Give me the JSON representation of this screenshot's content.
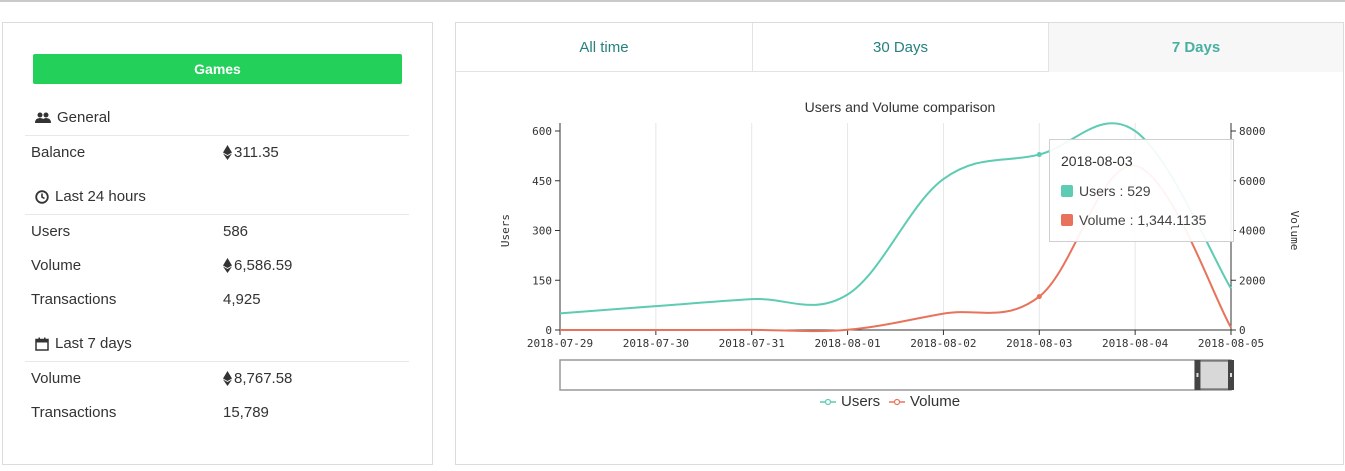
{
  "left": {
    "games_label": "Games",
    "general": {
      "heading": "General",
      "balance_label": "Balance",
      "balance_value": "311.35"
    },
    "last24": {
      "heading": "Last 24 hours",
      "users_label": "Users",
      "users_value": "586",
      "volume_label": "Volume",
      "volume_value": "6,586.59",
      "transactions_label": "Transactions",
      "transactions_value": "4,925"
    },
    "last7": {
      "heading": "Last 7 days",
      "volume_label": "Volume",
      "volume_value": "8,767.58",
      "transactions_label": "Transactions",
      "transactions_value": "15,789"
    }
  },
  "tabs": [
    {
      "label": "All time",
      "active": false
    },
    {
      "label": "30 Days",
      "active": false
    },
    {
      "label": "7 Days",
      "active": true
    }
  ],
  "tooltip": {
    "date": "2018-08-03",
    "users_text": "Users : 529",
    "volume_text": "Volume : 1,344.1135"
  },
  "colors": {
    "users": "#5ecbb3",
    "volume": "#e8735c",
    "games_button": "#22d05a"
  },
  "chart_data": {
    "type": "line",
    "title": "Users and Volume comparison",
    "x": [
      "2018-07-29",
      "2018-07-30",
      "2018-07-31",
      "2018-08-01",
      "2018-08-02",
      "2018-08-03",
      "2018-08-04",
      "2018-08-05"
    ],
    "series": [
      {
        "name": "Users",
        "axis": "left",
        "values": [
          50,
          72,
          93,
          107,
          455,
          529,
          600,
          125
        ]
      },
      {
        "name": "Volume",
        "axis": "right",
        "values": [
          0,
          0,
          5,
          10,
          660,
          1344.1135,
          6600,
          100
        ]
      }
    ],
    "ylabel_left": "Users",
    "ylabel_right": "Volume",
    "ylim_left": [
      0,
      600
    ],
    "yticks_left": [
      "0",
      "150",
      "300",
      "450",
      "600"
    ],
    "ylim_right": [
      0,
      8000
    ],
    "yticks_right": [
      "0",
      "2000",
      "4000",
      "6000",
      "8000"
    ],
    "grid": "vertical",
    "legend": "bottom-center",
    "zoom_range": [
      0.95,
      1
    ]
  }
}
